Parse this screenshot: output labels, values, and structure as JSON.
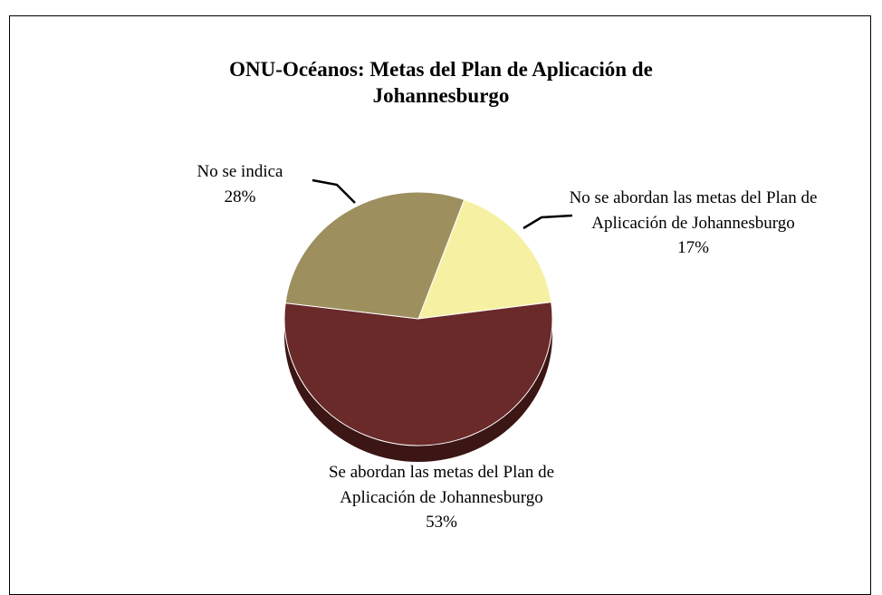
{
  "chart_data": {
    "type": "pie",
    "title": "ONU-Océanos: Metas del Plan de Aplicación de Johannesburgo",
    "categories": [
      "No se abordan las metas del Plan de Aplicación de Johannesburgo",
      "Se abordan las metas del Plan de Aplicación de Johannesburgo",
      "No se indica"
    ],
    "values": [
      17,
      53,
      28
    ],
    "value_labels": [
      "17%",
      "53%",
      "28%"
    ],
    "colors": [
      "#f6f1a2",
      "#6a2a2a",
      "#9d905e"
    ],
    "side_colors": [
      "#c9c27a",
      "#3c1515",
      "#6f6540"
    ]
  }
}
